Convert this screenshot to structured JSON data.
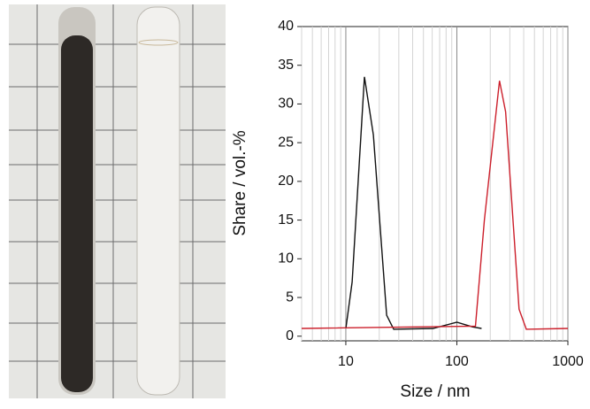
{
  "chart_data": {
    "type": "line",
    "xlabel": "Size / nm",
    "ylabel": "Share / vol.-%",
    "xscale": "log",
    "xlim": [
      4,
      1000
    ],
    "ylim": [
      -0.6,
      40
    ],
    "xticks": [
      10,
      100,
      1000
    ],
    "yticks": [
      0,
      5,
      10,
      15,
      20,
      25,
      30,
      35,
      40
    ],
    "xminorticks": [
      4,
      5,
      6,
      7,
      8,
      9,
      20,
      30,
      40,
      50,
      60,
      70,
      80,
      90,
      200,
      300,
      400,
      500,
      600,
      700,
      800,
      900
    ],
    "grid": true,
    "series": [
      {
        "color": "#111111",
        "x": [
          10,
          11.4,
          14.7,
          17.7,
          23.3,
          27,
          61,
          100,
          139,
          167
        ],
        "values": [
          1,
          7,
          33.5,
          26,
          2.7,
          0.9,
          1,
          1.8,
          1.2,
          1
        ]
      },
      {
        "color": "#cc1f2b",
        "x": [
          4,
          147,
          177,
          242,
          275,
          363,
          422,
          1000
        ],
        "values": [
          1,
          1.3,
          15,
          33,
          29,
          3.5,
          0.9,
          1
        ]
      }
    ]
  }
}
